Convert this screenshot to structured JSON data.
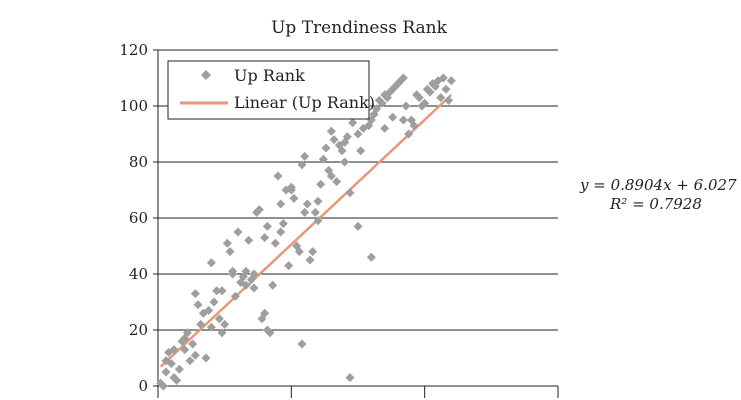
{
  "chart_data": {
    "type": "scatter",
    "title": "Up Trendiness Rank",
    "xlabel": "",
    "ylabel": "",
    "ylim": [
      0,
      120
    ],
    "xlim": [
      0,
      150
    ],
    "y_ticks": [
      "0",
      "20",
      "40",
      "60",
      "80",
      "100",
      "120"
    ],
    "grid": "horizontal",
    "legend_position": "top-left",
    "legend": [
      {
        "label": "Up Rank",
        "marker": "diamond",
        "color": "#9e9e9e"
      },
      {
        "label": "Linear (Up Rank)",
        "marker": "line",
        "color": "#e9967a"
      }
    ],
    "annotation": {
      "equation": "y = 0.8904x + 6.027",
      "r2_label": "R² = 0.7928"
    },
    "trendline": {
      "slope": 0.8904,
      "intercept": 6.027,
      "x_range": [
        1,
        110
      ]
    },
    "series": [
      {
        "name": "Up Rank",
        "color": "#9e9e9e",
        "points": [
          [
            1,
            1
          ],
          [
            2,
            0
          ],
          [
            3,
            5
          ],
          [
            4,
            12
          ],
          [
            5,
            8
          ],
          [
            6,
            3
          ],
          [
            7,
            2
          ],
          [
            8,
            6
          ],
          [
            9,
            16
          ],
          [
            10,
            13
          ],
          [
            11,
            19
          ],
          [
            12,
            9
          ],
          [
            13,
            15
          ],
          [
            14,
            33
          ],
          [
            15,
            29
          ],
          [
            16,
            22
          ],
          [
            17,
            26
          ],
          [
            18,
            10
          ],
          [
            19,
            27
          ],
          [
            20,
            44
          ],
          [
            21,
            30
          ],
          [
            22,
            34
          ],
          [
            23,
            24
          ],
          [
            24,
            19
          ],
          [
            25,
            22
          ],
          [
            26,
            51
          ],
          [
            27,
            48
          ],
          [
            28,
            40
          ],
          [
            29,
            32
          ],
          [
            30,
            55
          ],
          [
            31,
            37
          ],
          [
            32,
            39
          ],
          [
            33,
            41
          ],
          [
            34,
            52
          ],
          [
            35,
            38
          ],
          [
            36,
            35
          ],
          [
            37,
            62
          ],
          [
            38,
            63
          ],
          [
            39,
            24
          ],
          [
            40,
            53
          ],
          [
            41,
            57
          ],
          [
            42,
            19
          ],
          [
            43,
            36
          ],
          [
            44,
            51
          ],
          [
            45,
            75
          ],
          [
            46,
            65
          ],
          [
            47,
            58
          ],
          [
            48,
            70
          ],
          [
            49,
            43
          ],
          [
            50,
            71
          ],
          [
            51,
            67
          ],
          [
            52,
            50
          ],
          [
            53,
            48
          ],
          [
            54,
            79
          ],
          [
            55,
            82
          ],
          [
            56,
            65
          ],
          [
            57,
            45
          ],
          [
            58,
            48
          ],
          [
            59,
            62
          ],
          [
            60,
            59
          ],
          [
            61,
            72
          ],
          [
            62,
            81
          ],
          [
            63,
            85
          ],
          [
            64,
            77
          ],
          [
            65,
            91
          ],
          [
            66,
            88
          ],
          [
            67,
            73
          ],
          [
            68,
            86
          ],
          [
            69,
            84
          ],
          [
            70,
            80
          ],
          [
            71,
            89
          ],
          [
            72,
            69
          ],
          [
            73,
            94
          ],
          [
            74,
            98
          ],
          [
            75,
            90
          ],
          [
            76,
            84
          ],
          [
            77,
            92
          ],
          [
            78,
            100
          ],
          [
            79,
            93
          ],
          [
            80,
            95
          ],
          [
            81,
            97
          ],
          [
            82,
            99
          ],
          [
            83,
            102
          ],
          [
            84,
            101
          ],
          [
            85,
            104
          ],
          [
            86,
            103
          ],
          [
            87,
            105
          ],
          [
            88,
            106
          ],
          [
            89,
            107
          ],
          [
            90,
            108
          ],
          [
            91,
            109
          ],
          [
            92,
            110
          ],
          [
            93,
            100
          ],
          [
            94,
            90
          ],
          [
            95,
            95
          ],
          [
            96,
            93
          ],
          [
            97,
            104
          ],
          [
            98,
            103
          ],
          [
            99,
            100
          ],
          [
            100,
            101
          ],
          [
            101,
            106
          ],
          [
            102,
            105
          ],
          [
            103,
            108
          ],
          [
            104,
            107
          ],
          [
            105,
            109
          ],
          [
            106,
            103
          ],
          [
            107,
            110
          ],
          [
            108,
            106
          ],
          [
            109,
            102
          ],
          [
            110,
            109
          ],
          [
            3,
            9
          ],
          [
            6,
            13
          ],
          [
            10,
            17
          ],
          [
            14,
            11
          ],
          [
            20,
            21
          ],
          [
            24,
            34
          ],
          [
            28,
            41
          ],
          [
            33,
            36
          ],
          [
            36,
            40
          ],
          [
            40,
            26
          ],
          [
            41,
            20
          ],
          [
            46,
            55
          ],
          [
            50,
            70
          ],
          [
            55,
            62
          ],
          [
            60,
            66
          ],
          [
            65,
            75
          ],
          [
            70,
            87
          ],
          [
            75,
            57
          ],
          [
            80,
            46
          ],
          [
            85,
            92
          ],
          [
            88,
            96
          ],
          [
            92,
            95
          ],
          [
            54,
            15
          ],
          [
            72,
            3
          ]
        ]
      }
    ]
  }
}
